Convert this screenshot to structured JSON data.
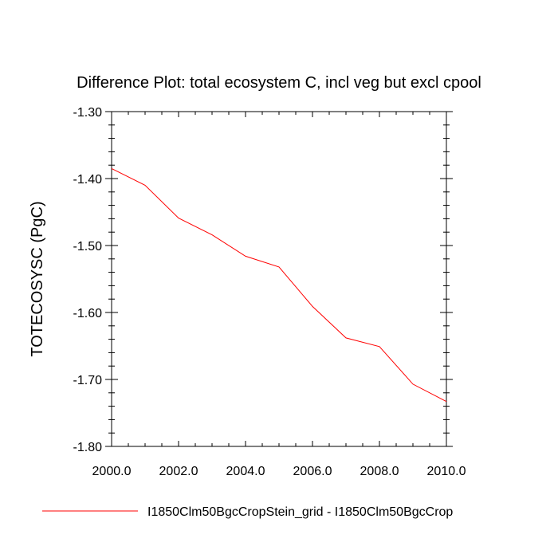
{
  "chart_data": {
    "type": "line",
    "title": "Difference Plot: total ecosystem C, incl veg but excl cpool",
    "xlabel": "",
    "ylabel": "TOTECOSYSC  (PgC)",
    "xlim": [
      2000.0,
      2010.0
    ],
    "ylim": [
      -1.8,
      -1.3
    ],
    "x_ticks": [
      "2000.0",
      "2002.0",
      "2004.0",
      "2006.0",
      "2008.0",
      "2010.0"
    ],
    "y_ticks": [
      "-1.30",
      "-1.40",
      "-1.50",
      "-1.60",
      "-1.70",
      "-1.80"
    ],
    "grid": false,
    "legend_position": "bottom",
    "series": [
      {
        "name": "I1850Clm50BgcCropStein_grid - I1850Clm50BgcCrop",
        "color": "#ff0000",
        "x": [
          2000,
          2001,
          2002,
          2003,
          2004,
          2005,
          2006,
          2007,
          2008,
          2009,
          2010
        ],
        "values": [
          -1.385,
          -1.41,
          -1.459,
          -1.484,
          -1.516,
          -1.532,
          -1.591,
          -1.638,
          -1.651,
          -1.707,
          -1.733
        ]
      }
    ]
  }
}
